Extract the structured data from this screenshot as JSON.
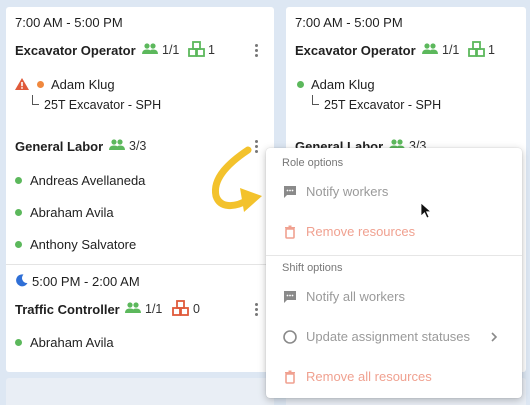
{
  "left_column": {
    "shift1": {
      "time": "7:00 AM - 5:00 PM",
      "role1": {
        "title": "Excavator Operator",
        "workers_count": "1/1",
        "equipment_count": "1",
        "worker": "Adam Klug",
        "equipment": "25T Excavator - SPH"
      },
      "role2": {
        "title": "General Labor",
        "workers_count": "3/3",
        "workers": [
          "Andreas Avellaneda",
          "Abraham Avila",
          "Anthony Salvatore"
        ]
      }
    },
    "shift2": {
      "time": "5:00 PM - 2:00 AM",
      "role1": {
        "title": "Traffic Controller",
        "workers_count": "1/1",
        "equipment_count": "0",
        "worker": "Abraham Avila"
      }
    }
  },
  "right_column": {
    "shift1": {
      "time": "7:00 AM - 5:00 PM",
      "role1": {
        "title": "Excavator Operator",
        "workers_count": "1/1",
        "equipment_count": "1",
        "worker": "Adam Klug",
        "equipment": "25T Excavator - SPH"
      },
      "role2": {
        "title": "General Labor",
        "workers_count": "3/3"
      }
    }
  },
  "menu": {
    "role_header": "Role options",
    "notify_workers": "Notify workers",
    "remove_resources": "Remove resources",
    "shift_header": "Shift options",
    "notify_all_workers": "Notify all workers",
    "update_assignment_statuses": "Update assignment statuses",
    "remove_all_resources": "Remove all resources"
  },
  "colors": {
    "green": "#5cb85c",
    "orange": "#f0883e",
    "warning": "#e05a3a",
    "arrow": "#f3c22c",
    "danger_text": "#f0a190"
  }
}
